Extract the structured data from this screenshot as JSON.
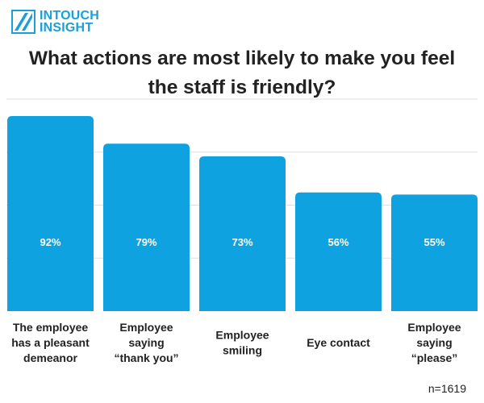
{
  "brand": {
    "line1": "INTOUCH",
    "line2": "INSIGHT",
    "color": "#1a9fd8",
    "icon": "diagonal-stripe-logo-icon"
  },
  "colors": {
    "bar": "#0fa2e1",
    "grid": "#e0e0e0",
    "text": "#222222",
    "value_text": "#ffffff"
  },
  "sample": "n=1619",
  "chart_data": {
    "type": "bar",
    "title": "What actions are most likely to make you feel the staff is friendly?",
    "title_lines": [
      "What actions are most likely to make you feel",
      "the staff is friendly?"
    ],
    "categories": [
      "The employee has a pleasant demeanor",
      "Employee saying “thank you”",
      "Employee smiling",
      "Eye contact",
      "Employee saying “please”"
    ],
    "category_lines": [
      [
        "The employee",
        "has a pleasant",
        "demeanor"
      ],
      [
        "Employee",
        "saying",
        "“thank you”"
      ],
      [
        "Employee",
        "smiling"
      ],
      [
        "Eye contact"
      ],
      [
        "Employee",
        "saying",
        "“please”"
      ]
    ],
    "values": [
      92,
      79,
      73,
      56,
      55
    ],
    "value_labels": [
      "92%",
      "79%",
      "73%",
      "56%",
      "55%"
    ],
    "xlabel": "",
    "ylabel": "",
    "ylim": [
      0,
      100
    ],
    "grid": true
  }
}
